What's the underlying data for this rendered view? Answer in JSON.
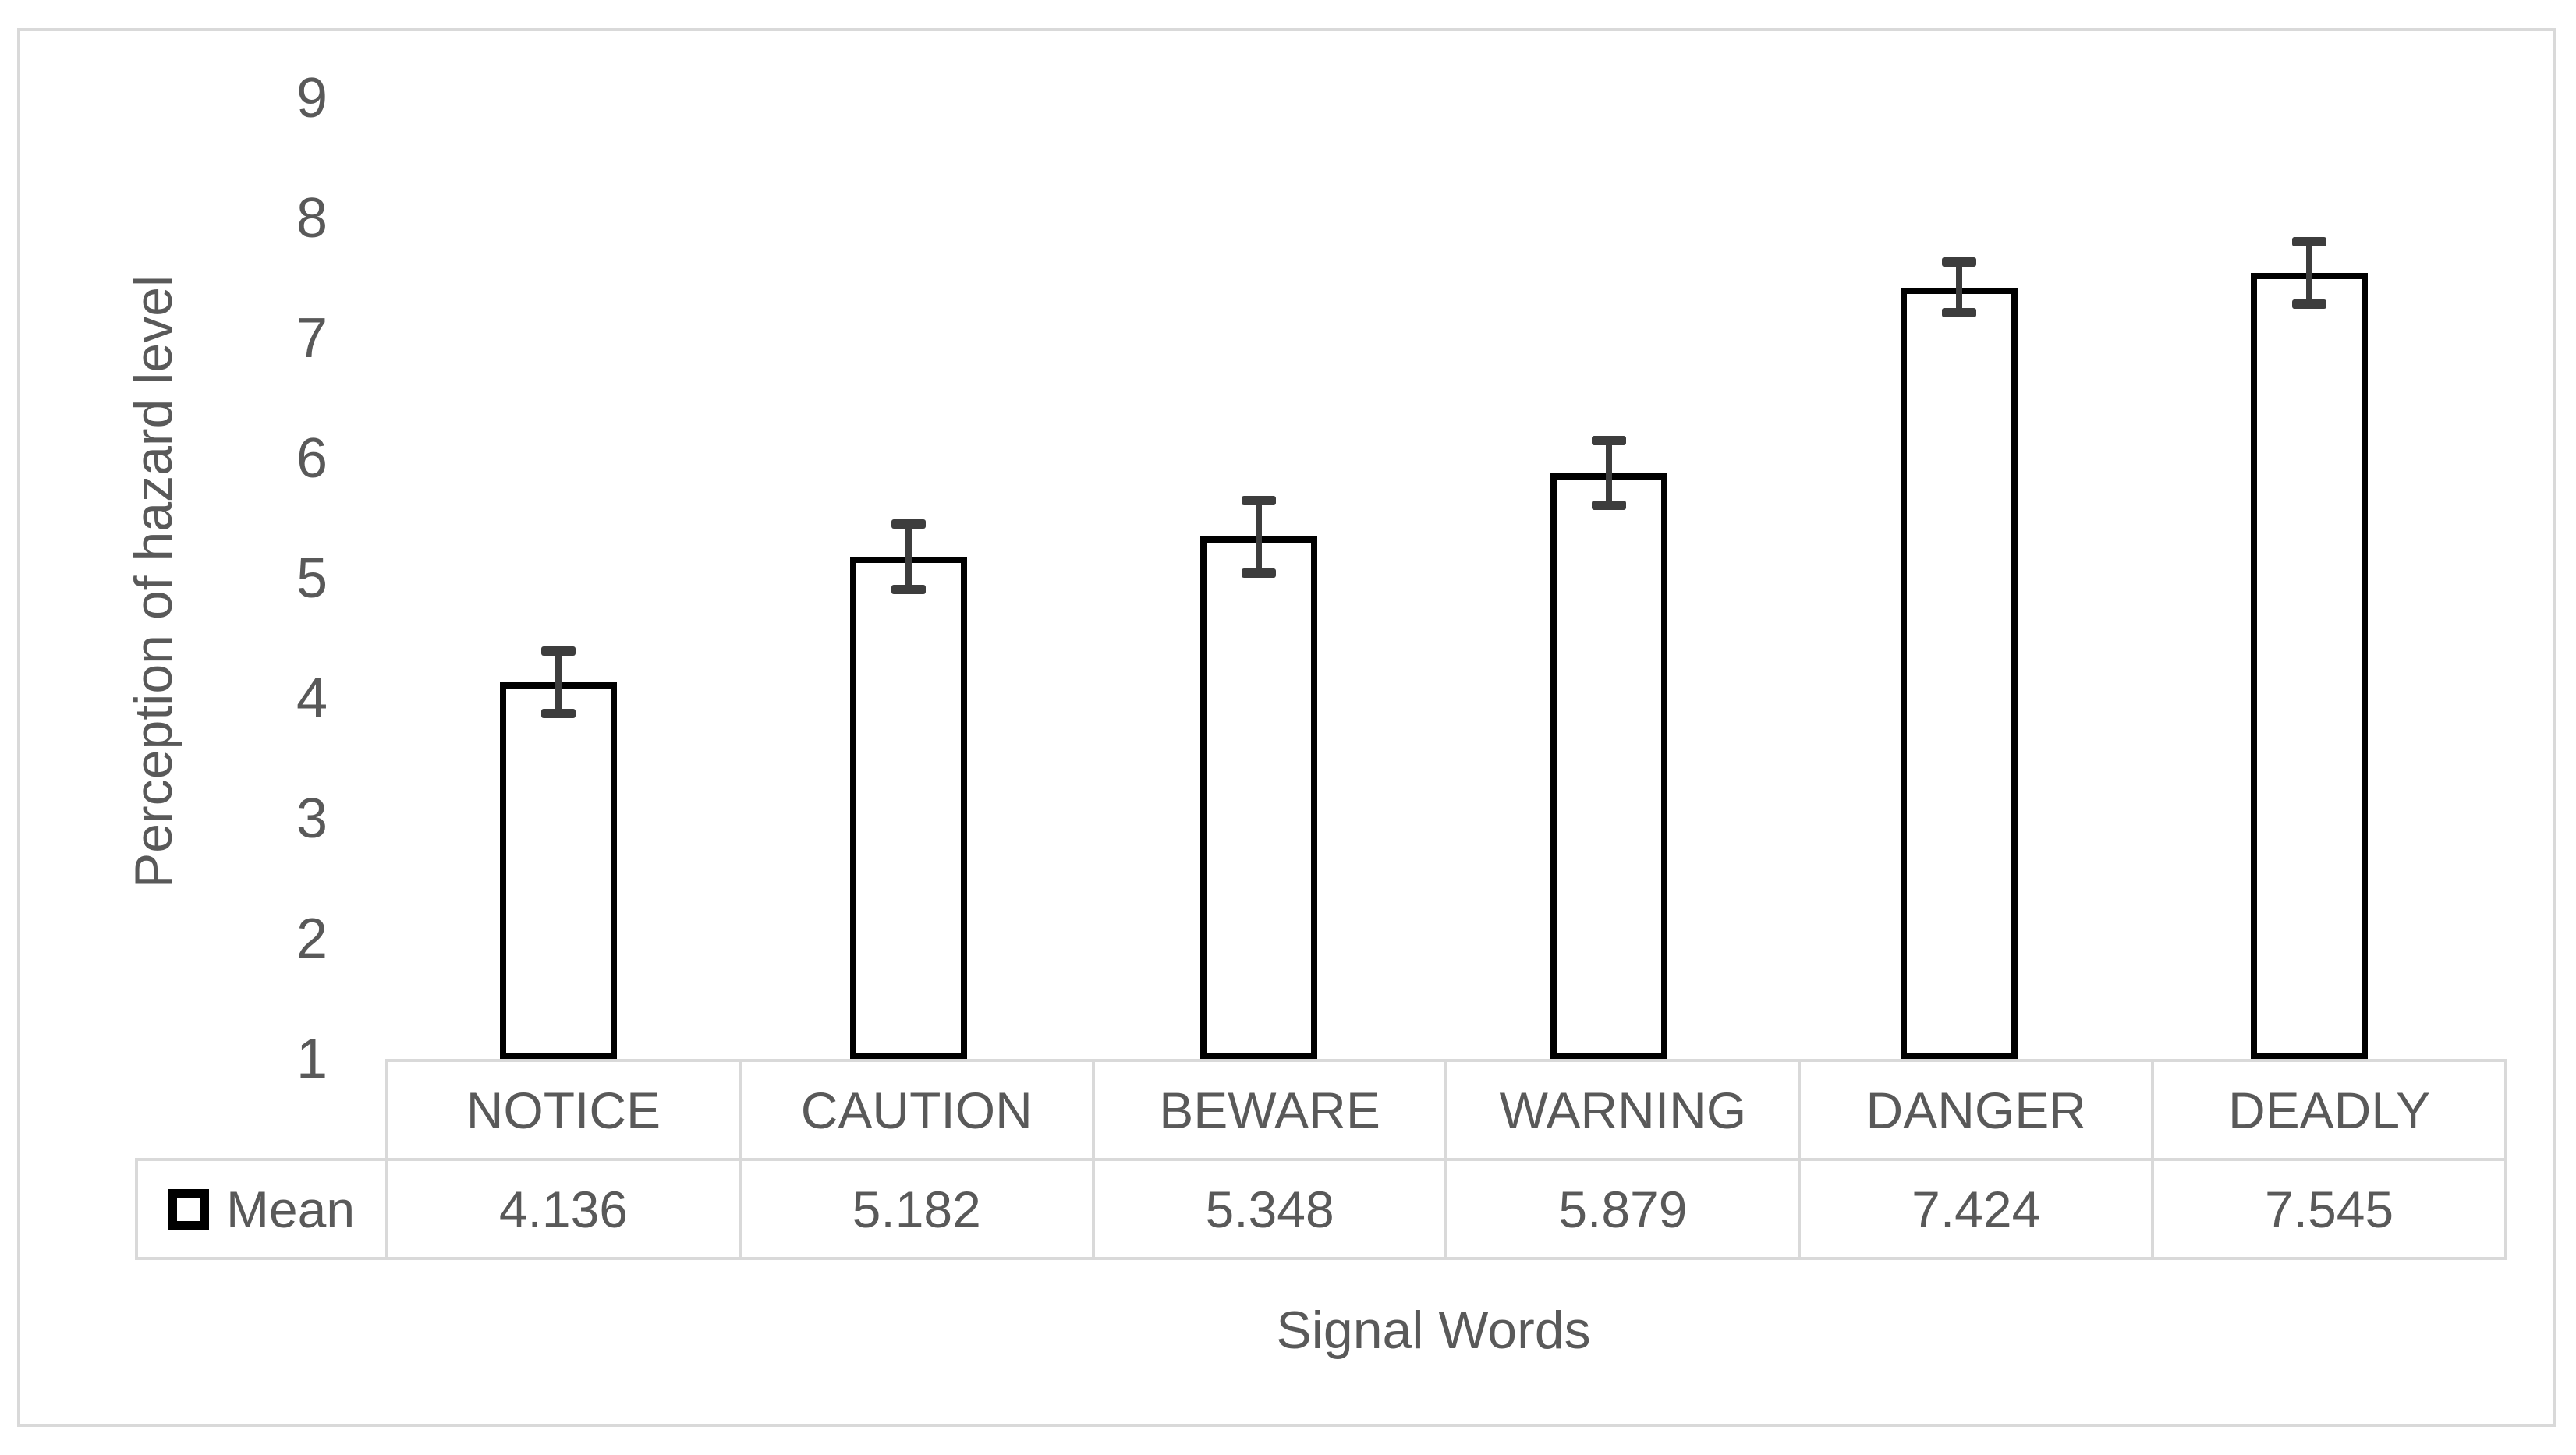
{
  "chart_data": {
    "type": "bar",
    "title": "",
    "xlabel": "Signal Words",
    "ylabel": "Perception of hazard level",
    "categories": [
      "NOTICE",
      "CAUTION",
      "BEWARE",
      "WARNING",
      "DANGER",
      "DEADLY"
    ],
    "series": [
      {
        "name": "Mean",
        "values": [
          4.136,
          5.182,
          5.348,
          5.879,
          7.424,
          7.545
        ],
        "value_labels": [
          "4.136",
          "5.182",
          "5.348",
          "5.879",
          "7.424",
          "7.545"
        ],
        "error_bars": [
          0.26,
          0.27,
          0.3,
          0.27,
          0.21,
          0.26
        ]
      }
    ],
    "ylim": [
      1,
      9
    ],
    "yticks": [
      "1",
      "2",
      "3",
      "4",
      "5",
      "6",
      "7",
      "8",
      "9"
    ],
    "grid": false,
    "legend_position": "table-row-left",
    "bar_fill": "#ffffff",
    "bar_border_color": "#000000",
    "error_bar_color": "#3d3d3d",
    "table_line_color": "#d9d9d9",
    "frame_color": "#d9d9d9",
    "text_color": "#595959"
  },
  "table": {
    "legend_label": "Mean",
    "legend_marker": "white-square-black-border",
    "columns": [
      "NOTICE",
      "CAUTION",
      "BEWARE",
      "WARNING",
      "DANGER",
      "DEADLY"
    ],
    "row_values": [
      "4.136",
      "5.182",
      "5.348",
      "5.879",
      "7.424",
      "7.545"
    ]
  }
}
